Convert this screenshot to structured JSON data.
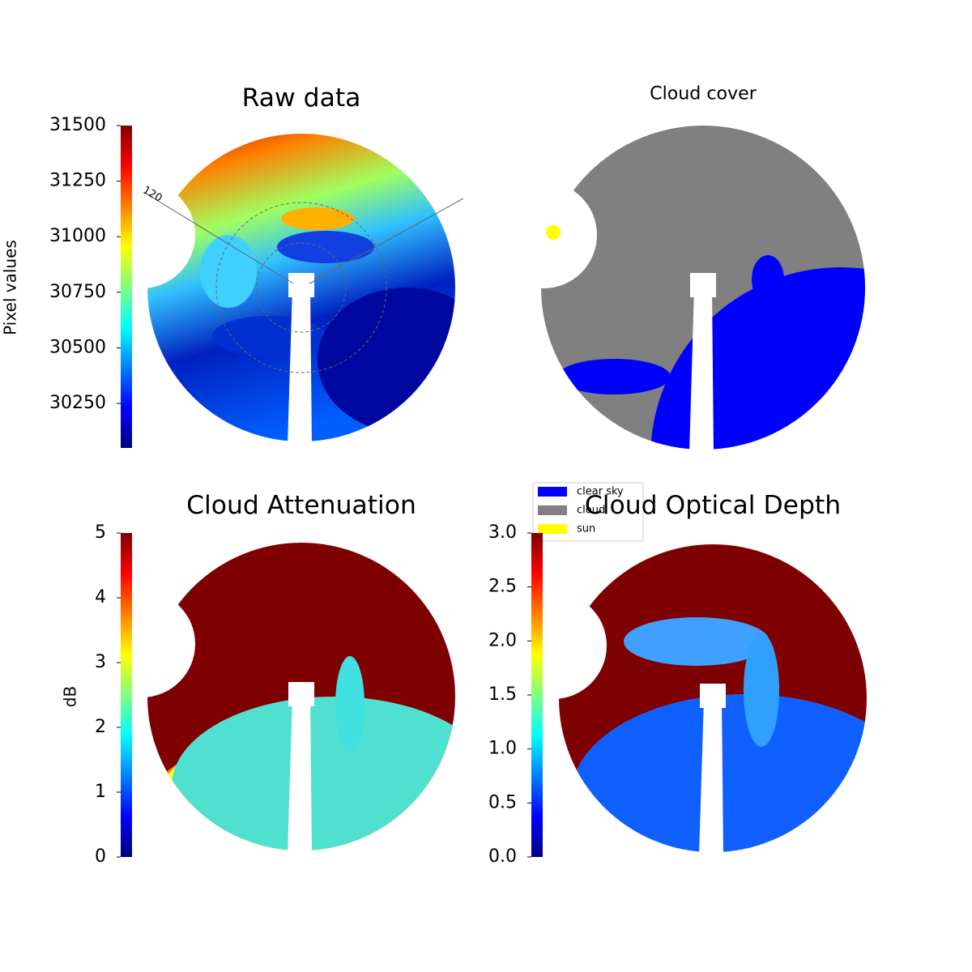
{
  "chart_data": [
    {
      "type": "image",
      "title": "Raw data",
      "colorbar_label": "Pixel values",
      "clim": [
        30050,
        31500
      ],
      "cticks": [
        30250,
        30500,
        30750,
        31000,
        31250,
        31500
      ],
      "annotations": [
        "120"
      ]
    },
    {
      "type": "image",
      "title": "Cloud cover",
      "legend": [
        {
          "name": "clear sky",
          "color": "#0000ff"
        },
        {
          "name": "cloud",
          "color": "#808080"
        },
        {
          "name": "sun",
          "color": "#ffff00"
        }
      ]
    },
    {
      "type": "image",
      "title": "Cloud Attenuation",
      "colorbar_label": "dB",
      "clim": [
        0,
        5
      ],
      "cticks": [
        0,
        1,
        2,
        3,
        4,
        5
      ]
    },
    {
      "type": "image",
      "title": "Cloud Optical Depth",
      "clim": [
        0,
        3
      ],
      "cticks": [
        {
          "value": 0,
          "label": "0.0"
        },
        {
          "value": 0.5,
          "label": "0.5"
        },
        {
          "value": 1,
          "label": "1.0"
        },
        {
          "value": 1.5,
          "label": "1.5"
        },
        {
          "value": 2,
          "label": "2.0"
        },
        {
          "value": 2.5,
          "label": "2.5"
        },
        {
          "value": 3,
          "label": "3.0"
        }
      ]
    }
  ]
}
